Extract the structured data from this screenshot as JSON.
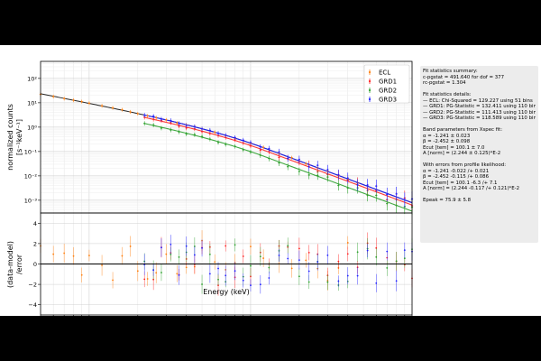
{
  "chart_data": [
    {
      "type": "scatter",
      "panel": "top",
      "xscale": "log",
      "yscale": "log",
      "xlim": [
        5,
        1000
      ],
      "ylim": [
        0.0003,
        500
      ],
      "ylabel_line1": "normalized counts",
      "ylabel_line2": "[s⁻¹keV⁻¹]",
      "xticks": [
        10,
        100,
        1000
      ],
      "xtick_labels": [
        "10¹",
        "10²",
        "10³"
      ],
      "yticks": [
        0.001,
        0.01,
        0.1,
        1,
        10,
        100
      ],
      "ytick_labels": [
        "10⁻³",
        "10⁻²",
        "10⁻¹",
        "10⁰",
        "10¹",
        "10²"
      ],
      "grid": true,
      "legend_position": "top-right",
      "series": [
        {
          "name": "ECL",
          "color": "#ff7f0e",
          "offset": 1.0,
          "x": [
            5,
            6,
            7,
            8,
            9,
            10,
            12,
            14,
            16,
            18,
            20,
            23,
            26,
            30,
            35,
            40,
            45,
            50,
            60,
            70,
            80,
            100,
            120,
            150,
            180,
            220,
            260,
            300,
            350,
            400
          ]
        },
        {
          "name": "GRD1",
          "color": "#ff2020",
          "offset": 0.8,
          "x": [
            22,
            25,
            28,
            32,
            36,
            40,
            45,
            50,
            56,
            63,
            70,
            80,
            90,
            100,
            115,
            130,
            150,
            170,
            200,
            230,
            260,
            300,
            350,
            400,
            460,
            530,
            600,
            700,
            800,
            900,
            1000
          ]
        },
        {
          "name": "GRD2",
          "color": "#2ca02c",
          "offset": 0.45,
          "x": [
            22,
            25,
            28,
            32,
            36,
            40,
            45,
            50,
            56,
            63,
            70,
            80,
            90,
            100,
            115,
            130,
            150,
            170,
            200,
            230,
            260,
            300,
            350,
            400,
            460,
            530,
            600,
            700,
            800,
            900,
            1000
          ]
        },
        {
          "name": "GRD3",
          "color": "#1f1fff",
          "offset": 1.0,
          "x": [
            22,
            25,
            28,
            32,
            36,
            40,
            45,
            50,
            56,
            63,
            70,
            80,
            90,
            100,
            115,
            130,
            150,
            170,
            200,
            230,
            260,
            300,
            350,
            400,
            460,
            530,
            600,
            700,
            800,
            900,
            1000
          ]
        }
      ],
      "model": {
        "alpha": -1.241,
        "epeak": 75.9,
        "norm_100": 0.22
      }
    },
    {
      "type": "scatter",
      "panel": "bottom",
      "xscale": "log",
      "xlim": [
        5,
        1000
      ],
      "ylim": [
        -5,
        5
      ],
      "xlabel": "Energy (keV)",
      "ylabel_line1": "(data-model)",
      "ylabel_line2": "/error",
      "xticks": [
        10,
        100,
        1000
      ],
      "xtick_labels": [
        "10¹",
        "10²",
        "10³"
      ],
      "yticks": [
        -4,
        -2,
        0,
        2,
        4
      ],
      "ytick_labels": [
        "−4",
        "−2",
        "0",
        "2",
        "4"
      ],
      "grid": true,
      "zero_line": 0
    }
  ],
  "stats": {
    "summary_title": "Fit statistics summary:",
    "cpgstat": "c-pgstat = 491.640 for dof = 377",
    "rcpgstat": "rc-pgstat = 1.304",
    "details_title": "Fit statistics details:",
    "detail_ecl": "— ECL: Chi-Squared = 129.227 using 51 bins",
    "detail_grd1": "— GRD1: PG-Statistic = 132.411 using 110 bins",
    "detail_grd2": "— GRD2: PG-Statistic = 111.413 using 110 bins",
    "detail_grd3": "— GRD3: PG-Statistic = 118.589 using 110 bins",
    "band_title": "Band parameters from Xspec fit:",
    "band_alpha": "α = -1.241 ± 0.023",
    "band_beta": "β = -2.452 ± 0.098",
    "band_ecut": "Ecut [tem] = 100.1 ± 7.0",
    "band_norm": "A [norm] = (2.244 ± 0.125)*E-2",
    "errors_title": "With errors from profile likelihood:",
    "err_alpha": "α = -1.241 -0.022 /+ 0.021",
    "err_beta": "β = -2.452 -0.115 /+ 0.086",
    "err_ecut": "Ecut [tem] = 100.1 -6.3 /+ 7.1",
    "err_norm": "A [norm] = (2.244 -0.117 /+ 0.121)*E-2",
    "epeak": "Epeak = 75.9 ± 5.8"
  }
}
